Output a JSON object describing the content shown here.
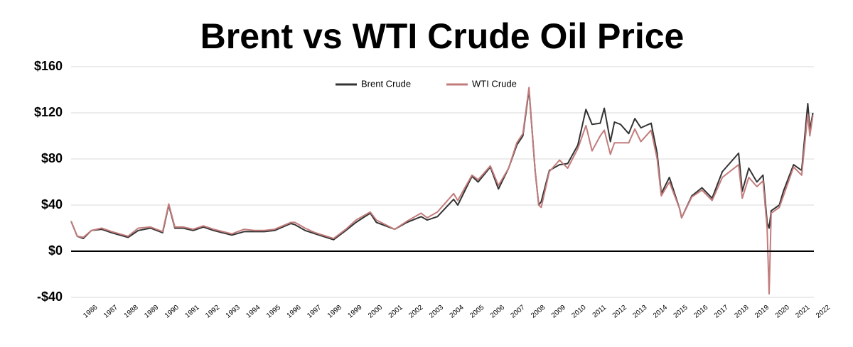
{
  "chart_data": {
    "type": "line",
    "title": "Brent vs WTI Crude Oil Price",
    "x": [
      1986.0,
      1986.3,
      1986.6,
      1987.0,
      1987.5,
      1988.0,
      1988.8,
      1989.3,
      1989.9,
      1990.5,
      1990.8,
      1991.1,
      1991.5,
      1992.0,
      1992.5,
      1993.0,
      1993.9,
      1994.5,
      1995.0,
      1995.5,
      1996.0,
      1996.8,
      1997.0,
      1997.5,
      1998.0,
      1998.9,
      1999.5,
      2000.0,
      2000.7,
      2001.0,
      2001.9,
      2002.5,
      2003.2,
      2003.5,
      2004.0,
      2004.8,
      2005.0,
      2005.7,
      2006.0,
      2006.6,
      2007.0,
      2007.5,
      2007.9,
      2008.2,
      2008.5,
      2008.8,
      2008.98,
      2009.1,
      2009.5,
      2010.0,
      2010.4,
      2010.9,
      2011.3,
      2011.6,
      2012.0,
      2012.2,
      2012.5,
      2012.7,
      2013.0,
      2013.4,
      2013.7,
      2014.0,
      2014.5,
      2014.8,
      2015.0,
      2015.4,
      2015.9,
      2016.0,
      2016.5,
      2017.0,
      2017.5,
      2018.0,
      2018.8,
      2018.98,
      2019.3,
      2019.7,
      2020.0,
      2020.2,
      2020.3,
      2020.4,
      2020.8,
      2021.0,
      2021.5,
      2021.9,
      2022.2,
      2022.3,
      2022.45
    ],
    "series": [
      {
        "name": "Brent Crude",
        "color": "#333333",
        "values": [
          26,
          13,
          11,
          18,
          19,
          16,
          12,
          18,
          20,
          16,
          40,
          20,
          20,
          18,
          21,
          18,
          14,
          17,
          17,
          17,
          18,
          24,
          23,
          18,
          15,
          10,
          18,
          25,
          33,
          25,
          19,
          25,
          30,
          27,
          30,
          45,
          40,
          65,
          60,
          73,
          54,
          72,
          92,
          100,
          140,
          70,
          40,
          43,
          70,
          75,
          76,
          92,
          123,
          110,
          111,
          124,
          95,
          112,
          110,
          102,
          115,
          107,
          111,
          85,
          50,
          64,
          37,
          29,
          48,
          55,
          46,
          69,
          85,
          52,
          72,
          60,
          66,
          25,
          20,
          35,
          40,
          52,
          75,
          70,
          128,
          105,
          120
        ]
      },
      {
        "name": "WTI Crude",
        "color": "#c27c7c",
        "values": [
          26,
          13,
          12,
          18,
          20,
          17,
          13,
          20,
          21,
          17,
          41,
          21,
          21,
          19,
          22,
          19,
          15,
          19,
          18,
          18,
          19,
          25,
          25,
          20,
          16,
          11,
          19,
          27,
          34,
          27,
          19,
          26,
          33,
          29,
          34,
          50,
          44,
          66,
          62,
          74,
          57,
          72,
          94,
          102,
          142,
          70,
          40,
          38,
          69,
          79,
          72,
          89,
          109,
          87,
          100,
          105,
          84,
          94,
          94,
          94,
          106,
          95,
          105,
          80,
          48,
          60,
          37,
          29,
          47,
          53,
          44,
          64,
          75,
          46,
          64,
          56,
          61,
          20,
          -37,
          33,
          38,
          48,
          73,
          66,
          119,
          100,
          118
        ]
      }
    ],
    "xlim": [
      1986,
      2022.5
    ],
    "ylim": [
      -40,
      160
    ],
    "xticks": [
      1986,
      1987,
      1988,
      1989,
      1990,
      1991,
      1992,
      1993,
      1994,
      1995,
      1996,
      1997,
      1998,
      1999,
      2000,
      2001,
      2002,
      2003,
      2004,
      2005,
      2006,
      2007,
      2008,
      2009,
      2010,
      2011,
      2012,
      2013,
      2014,
      2015,
      2016,
      2017,
      2018,
      2019,
      2020,
      2021,
      2022
    ],
    "yticks": [
      {
        "value": -40,
        "label": "-$40"
      },
      {
        "value": 0,
        "label": "$0"
      },
      {
        "value": 40,
        "label": "$40"
      },
      {
        "value": 80,
        "label": "$80"
      },
      {
        "value": 120,
        "label": "$120"
      },
      {
        "value": 160,
        "label": "$160"
      }
    ],
    "grid": true,
    "legend": "top"
  }
}
